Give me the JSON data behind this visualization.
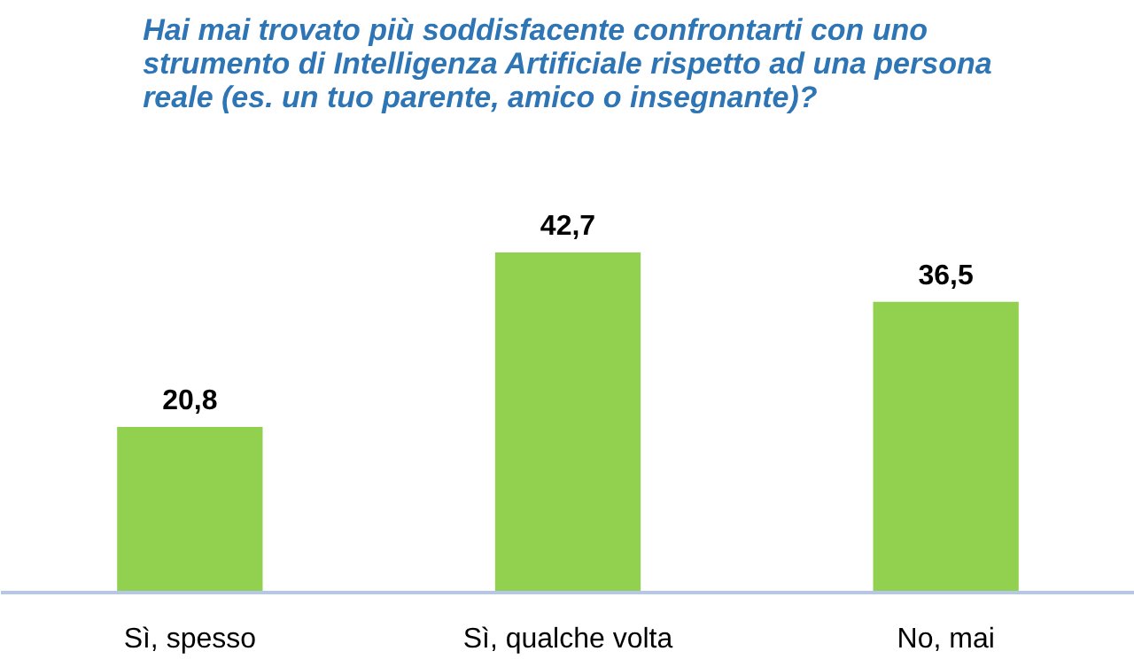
{
  "chart_data": {
    "type": "bar",
    "title": "Hai mai trovato più soddisfacente confrontarti con uno\nstrumento di Intelligenza Artificiale rispetto ad una persona\nreale (es. un tuo parente, amico o insegnante)?",
    "categories": [
      "Sì, spesso",
      "Sì, qualche volta",
      "No, mai"
    ],
    "values": [
      20.8,
      42.7,
      36.5
    ],
    "value_labels": [
      "20,8",
      "42,7",
      "36,5"
    ],
    "color": "#92d050",
    "grid": false
  }
}
